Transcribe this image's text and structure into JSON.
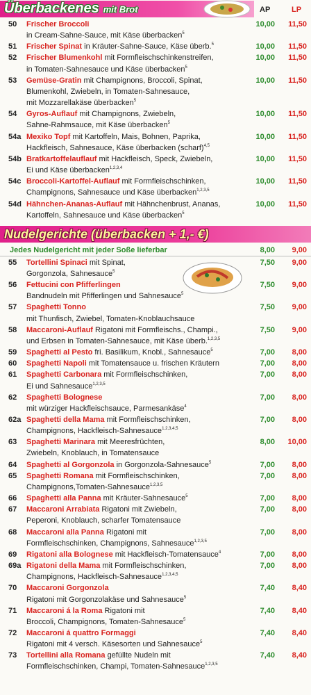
{
  "sections": [
    {
      "title": "Überbackenes",
      "subtitle": "mit Brot",
      "columns": [
        "AP",
        "LP"
      ],
      "items": [
        {
          "number": "50",
          "name": "Frischer Broccoli",
          "lines": [
            "in Cream-Sahne-Sauce, mit Käse überbacken"
          ],
          "sup": "5",
          "ap": "10,00",
          "lp": "11,50"
        },
        {
          "number": "51",
          "name": "Frischer Spinat",
          "inline": "in Kräuter-Sahne-Sauce, Käse überb.",
          "sup": "5",
          "ap": "10,00",
          "lp": "11,50"
        },
        {
          "number": "52",
          "name": "Frischer Blumenkohl",
          "inline": "mit Formfleischschinkenstreifen,",
          "lines": [
            "in Tomaten-Sahnesauce und Käse überbacken"
          ],
          "sup": "5",
          "ap": "10,00",
          "lp": "11,50"
        },
        {
          "number": "53",
          "name": "Gemüse-Gratin",
          "inline": "mit Champignons, Broccoli, Spinat,",
          "lines": [
            "Blumenkohl, Zwiebeln, in Tomaten-Sahnesauce,",
            "mit Mozzarellakäse überbacken"
          ],
          "sup": "5",
          "ap": "10,00",
          "lp": "11,50"
        },
        {
          "number": "54",
          "name": "Gyros-Auflauf",
          "inline": "mit Champignons, Zwiebeln,",
          "lines": [
            "Sahne-Rahmsauce, mit Käse überbacken"
          ],
          "sup": "5",
          "ap": "10,00",
          "lp": "11,50"
        },
        {
          "number": "54a",
          "name": "Mexiko Topf",
          "inline": "mit Kartoffeln, Mais, Bohnen, Paprika,",
          "lines": [
            "Hackfleisch, Sahnesauce, Käse überbacken (scharf)"
          ],
          "sup": "4,5",
          "ap": "10,00",
          "lp": "11,50"
        },
        {
          "number": "54b",
          "name": "Bratkartoffelauflauf",
          "inline": "mit Hackfleisch, Speck, Zwiebeln,",
          "lines": [
            "Ei und Käse überbacken"
          ],
          "sup": "1,2,3,4",
          "ap": "10,00",
          "lp": "11,50"
        },
        {
          "number": "54c",
          "name": "Broccoli-Kartoffel-Auflauf",
          "inline": "mit Formfleischschinken,",
          "lines": [
            "Champignons, Sahnesauce und Käse überbacken"
          ],
          "sup": "1,2,3,5",
          "ap": "10,00",
          "lp": "11,50"
        },
        {
          "number": "54d",
          "name": "Hähnchen-Ananas-Auflauf",
          "inline": "mit Hähnchenbrust, Ananas,",
          "lines": [
            "Kartoffeln, Sahnesauce und Käse überbacken"
          ],
          "sup": "5",
          "ap": "10,00",
          "lp": "11,50"
        }
      ]
    },
    {
      "title": "Nudelgerichte (überbacken + 1,- €)",
      "banner": {
        "text": "Jedes Nudelgericht mit jeder Soße lieferbar",
        "ap": "8,00",
        "lp": "9,00"
      },
      "items": [
        {
          "number": "55",
          "name": "Tortellini Spinaci",
          "inline": "mit Spinat,",
          "lines": [
            "Gorgonzola, Sahnesauce"
          ],
          "sup": "5",
          "ap": "7,50",
          "lp": "9,00"
        },
        {
          "number": "56",
          "name": "Fettucini con Pfifferlingen",
          "lines": [
            "Bandnudeln mit Pfifferlingen und Sahnesauce"
          ],
          "sup": "5",
          "ap": "7,50",
          "lp": "9,00"
        },
        {
          "number": "57",
          "name": "Spaghetti Tonno",
          "lines": [
            "mit Thunfisch, Zwiebel, Tomaten-Knoblauchsauce"
          ],
          "ap": "7,50",
          "lp": "9,00"
        },
        {
          "number": "58",
          "name": "Maccaroni-Auflauf",
          "inline": "Rigatoni mit Formfleischs., Champi.,",
          "lines": [
            "und Erbsen in Tomaten-Sahnesauce, mit Käse überb."
          ],
          "sup": "1,2,3,5",
          "ap": "7,50",
          "lp": "9,00"
        },
        {
          "number": "59",
          "name": "Spaghetti al Pesto",
          "inline": "fri. Basilikum, Knobl., Sahnesauce",
          "sup": "5",
          "ap": "7,00",
          "lp": "8,00"
        },
        {
          "number": "60",
          "name": "Spaghetti Napoli",
          "inline": "mit Tomatensauce u. frischen Kräutern",
          "ap": "7,00",
          "lp": "8,00"
        },
        {
          "number": "61",
          "name": "Spaghetti Carbonara",
          "inline": "mit Formfleischschinken,",
          "lines": [
            "Ei und Sahnesauce"
          ],
          "sup": "1,2,3,5",
          "ap": "7,00",
          "lp": "8,00"
        },
        {
          "number": "62",
          "name": "Spaghetti Bolognese",
          "lines": [
            "mit würziger Hackfleischsauce, Parmesankäse"
          ],
          "sup": "4",
          "ap": "7,00",
          "lp": "8,00"
        },
        {
          "number": "62a",
          "name": "Spaghetti della Mama",
          "inline": "mit Formfleischschinken,",
          "lines": [
            "Champignons, Hackfleisch-Sahnesauce"
          ],
          "sup": "1,2,3,4,5",
          "ap": "7,00",
          "lp": "8,00"
        },
        {
          "number": "63",
          "name": "Spaghetti Marinara",
          "inline": "mit Meeresfrüchten,",
          "lines": [
            "Zwiebeln, Knoblauch, in Tomatensauce"
          ],
          "ap": "8,00",
          "lp": "10,00"
        },
        {
          "number": "64",
          "name": "Spaghetti al Gorgonzola",
          "inline": "in Gorgonzola-Sahnesauce",
          "sup": "5",
          "ap": "7,00",
          "lp": "8,00"
        },
        {
          "number": "65",
          "name": "Spaghetti Romana",
          "inline": "mit Formfleischschinken,",
          "lines": [
            "Champignons,Tomaten-Sahnesauce"
          ],
          "sup": "1,2,3,5",
          "ap": "7,00",
          "lp": "8,00"
        },
        {
          "number": "66",
          "name": "Spaghetti alla Panna",
          "inline": "mit Kräuter-Sahnesauce",
          "sup": "5",
          "ap": "7,00",
          "lp": "8,00"
        },
        {
          "number": "67",
          "name": "Maccaroni Arrabiata",
          "inline": "Rigatoni mit Zwiebeln,",
          "lines": [
            "Peperoni, Knoblauch, scharfer Tomatensauce"
          ],
          "ap": "7,00",
          "lp": "8,00"
        },
        {
          "number": "68",
          "name": "Maccaroni alla Panna",
          "inline": "Rigatoni mit",
          "lines": [
            "Formfleischschinken, Champignons, Sahnesauce"
          ],
          "sup": "1,2,3,5",
          "ap": "7,00",
          "lp": "8,00"
        },
        {
          "number": "69",
          "name": "Rigatoni alla Bolognese",
          "inline": "mit Hackfleisch-Tomatensauce",
          "sup": "4",
          "ap": "7,00",
          "lp": "8,00"
        },
        {
          "number": "69a",
          "name": "Rigatoni della Mama",
          "inline": "mit Formfleischschinken,",
          "lines": [
            "Champignons, Hackfleisch-Sahnesauce"
          ],
          "sup": "1,2,3,4,5",
          "ap": "7,00",
          "lp": "8,00"
        },
        {
          "number": "70",
          "name": "Maccaroni Gorgonzola",
          "lines": [
            "Rigatoni mit Gorgonzolakäse und Sahnesauce"
          ],
          "sup": "5",
          "ap": "7,40",
          "lp": "8,40"
        },
        {
          "number": "71",
          "name": "Maccaroni á la Roma",
          "inline": "Rigatoni mit",
          "lines": [
            "Broccoli, Champignons, Tomaten-Sahnesauce"
          ],
          "sup": "5",
          "ap": "7,40",
          "lp": "8,40"
        },
        {
          "number": "72",
          "name": "Maccaroni á quattro Formaggi",
          "lines": [
            "Rigatoni mit 4 versch. Käsesorten und Sahnesauce"
          ],
          "sup": "5",
          "ap": "7,40",
          "lp": "8,40"
        },
        {
          "number": "73",
          "name": "Tortellini alla Romana",
          "inline": "gefüllte Nudeln mit",
          "lines": [
            "Formfleischschinken, Champi, Tomaten-Sahnesauce"
          ],
          "sup": "1,2,3,5",
          "ap": "7,40",
          "lp": "8,40"
        }
      ]
    }
  ]
}
